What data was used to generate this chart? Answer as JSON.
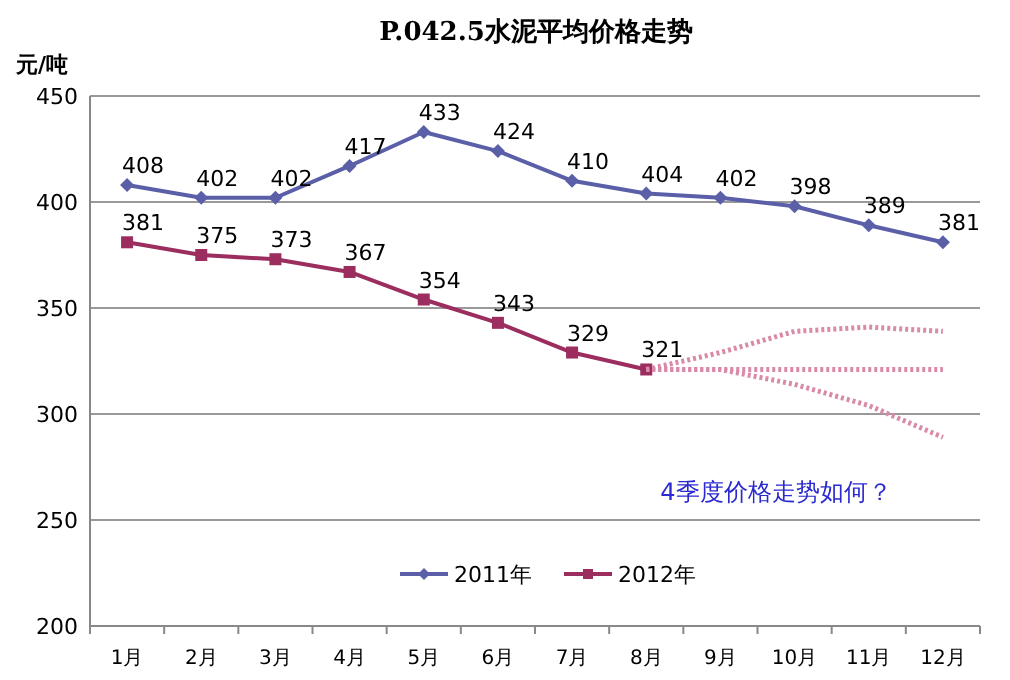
{
  "chart_data": {
    "type": "line",
    "title": "P.042.5水泥平均价格走势",
    "ylabel": "元/吨",
    "categories": [
      "1月",
      "2月",
      "3月",
      "4月",
      "5月",
      "6月",
      "7月",
      "8月",
      "9月",
      "10月",
      "11月",
      "12月"
    ],
    "ylim": [
      200,
      450
    ],
    "yticks": [
      200,
      250,
      300,
      350,
      400,
      450
    ],
    "grid": "y",
    "legend": "bottom",
    "annotations": [
      "4季度价格走势如何？"
    ],
    "series": [
      {
        "name": "2011年",
        "color": "#5b5fa8",
        "marker": "diamond",
        "values": [
          408,
          402,
          402,
          417,
          433,
          424,
          410,
          404,
          402,
          398,
          389,
          381
        ],
        "value_labels": [
          "408",
          "402",
          "402",
          "417",
          "433",
          "424",
          "410",
          "404",
          "402",
          "398",
          "389",
          "381"
        ]
      },
      {
        "name": "2012年",
        "color": "#9b2d5f",
        "marker": "square",
        "values": [
          381,
          375,
          373,
          367,
          354,
          343,
          329,
          321,
          null,
          null,
          null,
          null
        ],
        "value_labels": [
          "381",
          "375",
          "373",
          "367",
          "354",
          "343",
          "329",
          "321",
          null,
          null,
          null,
          null
        ]
      },
      {
        "color": "#d98aa8",
        "line_style": "dotted",
        "marker": "none",
        "values": [
          null,
          null,
          null,
          null,
          null,
          null,
          null,
          321,
          329,
          339,
          341,
          339
        ]
      },
      {
        "color": "#d98aa8",
        "line_style": "dotted",
        "marker": "none",
        "values": [
          null,
          null,
          null,
          null,
          null,
          null,
          null,
          321,
          321,
          321,
          321,
          321
        ]
      },
      {
        "color": "#d98aa8",
        "line_style": "dotted",
        "marker": "none",
        "values": [
          null,
          null,
          null,
          null,
          null,
          null,
          null,
          321,
          321,
          314,
          304,
          289
        ]
      }
    ]
  }
}
